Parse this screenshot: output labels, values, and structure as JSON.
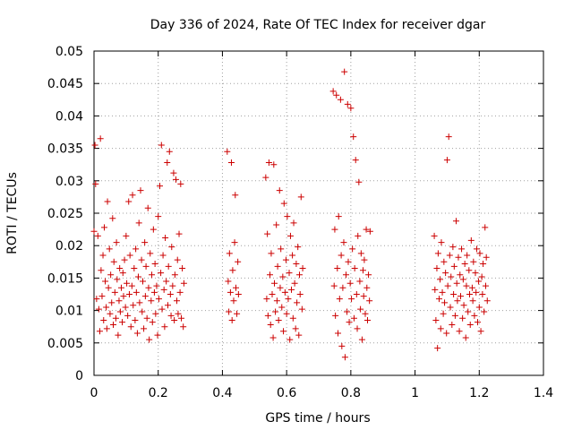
{
  "chart_data": {
    "type": "scatter",
    "title": "Day 336 of 2024, Rate Of TEC Index for receiver dgar",
    "xlabel": "GPS time / hours",
    "ylabel": "ROTI / TECUs",
    "xlim": [
      0,
      1.4
    ],
    "ylim": [
      0,
      0.05
    ],
    "x_ticks": [
      0,
      0.2,
      0.4,
      0.6,
      0.8,
      1,
      1.2,
      1.4
    ],
    "x_tick_labels": [
      "0",
      "0.2",
      "0.4",
      "0.6",
      "0.8",
      "1",
      "1.2",
      "1.4"
    ],
    "y_ticks": [
      0,
      0.005,
      0.01,
      0.015,
      0.02,
      0.025,
      0.03,
      0.035,
      0.04,
      0.045,
      0.05
    ],
    "y_tick_labels": [
      "0",
      "0.005",
      "0.01",
      "0.015",
      "0.02",
      "0.025",
      "0.03",
      "0.035",
      "0.04",
      "0.045",
      "0.05"
    ],
    "grid": true,
    "marker": "+",
    "marker_color": "#cc0000",
    "series": [
      {
        "name": "ROTI",
        "points": [
          [
            0.0,
            0.0222
          ],
          [
            0.003,
            0.0355
          ],
          [
            0.005,
            0.0295
          ],
          [
            0.008,
            0.0118
          ],
          [
            0.012,
            0.0215
          ],
          [
            0.015,
            0.0102
          ],
          [
            0.018,
            0.0068
          ],
          [
            0.02,
            0.0365
          ],
          [
            0.022,
            0.0162
          ],
          [
            0.025,
            0.0122
          ],
          [
            0.028,
            0.0185
          ],
          [
            0.03,
            0.0085
          ],
          [
            0.032,
            0.0228
          ],
          [
            0.035,
            0.0145
          ],
          [
            0.038,
            0.0105
          ],
          [
            0.04,
            0.0072
          ],
          [
            0.042,
            0.0268
          ],
          [
            0.045,
            0.0135
          ],
          [
            0.048,
            0.0195
          ],
          [
            0.05,
            0.0095
          ],
          [
            0.052,
            0.0155
          ],
          [
            0.055,
            0.0112
          ],
          [
            0.058,
            0.0242
          ],
          [
            0.06,
            0.0078
          ],
          [
            0.062,
            0.0175
          ],
          [
            0.065,
            0.0128
          ],
          [
            0.068,
            0.0088
          ],
          [
            0.07,
            0.0205
          ],
          [
            0.072,
            0.0148
          ],
          [
            0.075,
            0.0062
          ],
          [
            0.078,
            0.0115
          ],
          [
            0.08,
            0.0165
          ],
          [
            0.082,
            0.0098
          ],
          [
            0.085,
            0.0135
          ],
          [
            0.088,
            0.0082
          ],
          [
            0.09,
            0.0158
          ],
          [
            0.092,
            0.0122
          ],
          [
            0.095,
            0.0178
          ],
          [
            0.098,
            0.0105
          ],
          [
            0.1,
            0.0215
          ],
          [
            0.102,
            0.0142
          ],
          [
            0.105,
            0.0092
          ],
          [
            0.108,
            0.0268
          ],
          [
            0.11,
            0.0125
          ],
          [
            0.112,
            0.0185
          ],
          [
            0.115,
            0.0075
          ],
          [
            0.118,
            0.0138
          ],
          [
            0.12,
            0.0278
          ],
          [
            0.122,
            0.0108
          ],
          [
            0.125,
            0.0165
          ],
          [
            0.128,
            0.0085
          ],
          [
            0.13,
            0.0195
          ],
          [
            0.132,
            0.0128
          ],
          [
            0.135,
            0.0065
          ],
          [
            0.138,
            0.0152
          ],
          [
            0.14,
            0.0235
          ],
          [
            0.142,
            0.0112
          ],
          [
            0.145,
            0.0285
          ],
          [
            0.148,
            0.0178
          ],
          [
            0.15,
            0.0098
          ],
          [
            0.152,
            0.0145
          ],
          [
            0.155,
            0.0072
          ],
          [
            0.158,
            0.0205
          ],
          [
            0.16,
            0.0122
          ],
          [
            0.162,
            0.0168
          ],
          [
            0.165,
            0.0088
          ],
          [
            0.168,
            0.0258
          ],
          [
            0.17,
            0.0135
          ],
          [
            0.172,
            0.0055
          ],
          [
            0.175,
            0.0188
          ],
          [
            0.178,
            0.0115
          ],
          [
            0.18,
            0.0155
          ],
          [
            0.182,
            0.0082
          ],
          [
            0.185,
            0.0225
          ],
          [
            0.188,
            0.0128
          ],
          [
            0.19,
            0.0172
          ],
          [
            0.192,
            0.0095
          ],
          [
            0.195,
            0.0138
          ],
          [
            0.198,
            0.0062
          ],
          [
            0.2,
            0.0245
          ],
          [
            0.202,
            0.0118
          ],
          [
            0.205,
            0.0292
          ],
          [
            0.208,
            0.0158
          ],
          [
            0.21,
            0.0355
          ],
          [
            0.212,
            0.0102
          ],
          [
            0.215,
            0.0185
          ],
          [
            0.218,
            0.0132
          ],
          [
            0.22,
            0.0075
          ],
          [
            0.222,
            0.0212
          ],
          [
            0.225,
            0.0145
          ],
          [
            0.228,
            0.0328
          ],
          [
            0.23,
            0.0108
          ],
          [
            0.232,
            0.0168
          ],
          [
            0.235,
            0.0345
          ],
          [
            0.238,
            0.0125
          ],
          [
            0.24,
            0.0092
          ],
          [
            0.242,
            0.0198
          ],
          [
            0.245,
            0.0138
          ],
          [
            0.248,
            0.0312
          ],
          [
            0.25,
            0.0085
          ],
          [
            0.252,
            0.0155
          ],
          [
            0.255,
            0.0302
          ],
          [
            0.258,
            0.0115
          ],
          [
            0.26,
            0.0178
          ],
          [
            0.262,
            0.0095
          ],
          [
            0.265,
            0.0218
          ],
          [
            0.268,
            0.0128
          ],
          [
            0.27,
            0.0295
          ],
          [
            0.272,
            0.0088
          ],
          [
            0.275,
            0.0165
          ],
          [
            0.278,
            0.0075
          ],
          [
            0.28,
            0.0142
          ],
          [
            0.415,
            0.0345
          ],
          [
            0.418,
            0.0145
          ],
          [
            0.42,
            0.0098
          ],
          [
            0.422,
            0.0188
          ],
          [
            0.425,
            0.0128
          ],
          [
            0.428,
            0.0328
          ],
          [
            0.43,
            0.0085
          ],
          [
            0.432,
            0.0162
          ],
          [
            0.435,
            0.0115
          ],
          [
            0.438,
            0.0205
          ],
          [
            0.44,
            0.0278
          ],
          [
            0.442,
            0.0135
          ],
          [
            0.445,
            0.0095
          ],
          [
            0.448,
            0.0175
          ],
          [
            0.45,
            0.0125
          ],
          [
            0.535,
            0.0305
          ],
          [
            0.538,
            0.0118
          ],
          [
            0.54,
            0.0218
          ],
          [
            0.542,
            0.0092
          ],
          [
            0.545,
            0.0328
          ],
          [
            0.548,
            0.0155
          ],
          [
            0.55,
            0.0078
          ],
          [
            0.552,
            0.0188
          ],
          [
            0.555,
            0.0125
          ],
          [
            0.558,
            0.0058
          ],
          [
            0.56,
            0.0325
          ],
          [
            0.562,
            0.0142
          ],
          [
            0.565,
            0.0098
          ],
          [
            0.568,
            0.0232
          ],
          [
            0.57,
            0.0115
          ],
          [
            0.572,
            0.0168
          ],
          [
            0.575,
            0.0085
          ],
          [
            0.578,
            0.0285
          ],
          [
            0.58,
            0.0135
          ],
          [
            0.582,
            0.0195
          ],
          [
            0.585,
            0.0105
          ],
          [
            0.588,
            0.0152
          ],
          [
            0.59,
            0.0068
          ],
          [
            0.592,
            0.0265
          ],
          [
            0.595,
            0.0128
          ],
          [
            0.598,
            0.0178
          ],
          [
            0.6,
            0.0095
          ],
          [
            0.602,
            0.0245
          ],
          [
            0.605,
            0.0118
          ],
          [
            0.608,
            0.0158
          ],
          [
            0.61,
            0.0055
          ],
          [
            0.612,
            0.0215
          ],
          [
            0.615,
            0.0132
          ],
          [
            0.618,
            0.0185
          ],
          [
            0.62,
            0.0088
          ],
          [
            0.622,
            0.0235
          ],
          [
            0.625,
            0.0142
          ],
          [
            0.628,
            0.0072
          ],
          [
            0.63,
            0.0172
          ],
          [
            0.632,
            0.0112
          ],
          [
            0.635,
            0.0198
          ],
          [
            0.638,
            0.0062
          ],
          [
            0.64,
            0.0155
          ],
          [
            0.642,
            0.0125
          ],
          [
            0.645,
            0.0275
          ],
          [
            0.648,
            0.0102
          ],
          [
            0.65,
            0.0165
          ],
          [
            0.745,
            0.0438
          ],
          [
            0.748,
            0.0138
          ],
          [
            0.75,
            0.0225
          ],
          [
            0.752,
            0.0092
          ],
          [
            0.755,
            0.0432
          ],
          [
            0.758,
            0.0165
          ],
          [
            0.76,
            0.0065
          ],
          [
            0.762,
            0.0245
          ],
          [
            0.765,
            0.0118
          ],
          [
            0.768,
            0.0425
          ],
          [
            0.77,
            0.0185
          ],
          [
            0.772,
            0.0045
          ],
          [
            0.775,
            0.0135
          ],
          [
            0.778,
            0.0205
          ],
          [
            0.78,
            0.0468
          ],
          [
            0.782,
            0.0028
          ],
          [
            0.785,
            0.0155
          ],
          [
            0.788,
            0.0098
          ],
          [
            0.79,
            0.0418
          ],
          [
            0.792,
            0.0175
          ],
          [
            0.795,
            0.0082
          ],
          [
            0.798,
            0.0142
          ],
          [
            0.8,
            0.0412
          ],
          [
            0.802,
            0.0118
          ],
          [
            0.805,
            0.0195
          ],
          [
            0.808,
            0.0368
          ],
          [
            0.81,
            0.0088
          ],
          [
            0.812,
            0.0165
          ],
          [
            0.815,
            0.0332
          ],
          [
            0.818,
            0.0125
          ],
          [
            0.82,
            0.0072
          ],
          [
            0.822,
            0.0215
          ],
          [
            0.825,
            0.0298
          ],
          [
            0.828,
            0.0145
          ],
          [
            0.83,
            0.0102
          ],
          [
            0.832,
            0.0188
          ],
          [
            0.835,
            0.0055
          ],
          [
            0.838,
            0.0162
          ],
          [
            0.84,
            0.0122
          ],
          [
            0.842,
            0.0178
          ],
          [
            0.845,
            0.0095
          ],
          [
            0.848,
            0.0225
          ],
          [
            0.85,
            0.0135
          ],
          [
            0.852,
            0.0085
          ],
          [
            0.855,
            0.0155
          ],
          [
            0.858,
            0.0115
          ],
          [
            0.86,
            0.0222
          ],
          [
            1.06,
            0.0215
          ],
          [
            1.062,
            0.0132
          ],
          [
            1.065,
            0.0085
          ],
          [
            1.068,
            0.0165
          ],
          [
            1.07,
            0.0042
          ],
          [
            1.072,
            0.0188
          ],
          [
            1.075,
            0.0118
          ],
          [
            1.078,
            0.0148
          ],
          [
            1.08,
            0.0072
          ],
          [
            1.082,
            0.0205
          ],
          [
            1.085,
            0.0128
          ],
          [
            1.088,
            0.0095
          ],
          [
            1.09,
            0.0175
          ],
          [
            1.092,
            0.0112
          ],
          [
            1.095,
            0.0158
          ],
          [
            1.098,
            0.0065
          ],
          [
            1.1,
            0.0332
          ],
          [
            1.102,
            0.0138
          ],
          [
            1.105,
            0.0368
          ],
          [
            1.108,
            0.0185
          ],
          [
            1.11,
            0.0105
          ],
          [
            1.112,
            0.0152
          ],
          [
            1.115,
            0.0078
          ],
          [
            1.118,
            0.0198
          ],
          [
            1.12,
            0.0125
          ],
          [
            1.122,
            0.0168
          ],
          [
            1.125,
            0.0092
          ],
          [
            1.128,
            0.0238
          ],
          [
            1.13,
            0.0142
          ],
          [
            1.132,
            0.0115
          ],
          [
            1.135,
            0.0182
          ],
          [
            1.138,
            0.0068
          ],
          [
            1.14,
            0.0155
          ],
          [
            1.142,
            0.0122
          ],
          [
            1.145,
            0.0195
          ],
          [
            1.148,
            0.0088
          ],
          [
            1.15,
            0.0148
          ],
          [
            1.152,
            0.0108
          ],
          [
            1.155,
            0.0172
          ],
          [
            1.158,
            0.0058
          ],
          [
            1.16,
            0.0138
          ],
          [
            1.162,
            0.0185
          ],
          [
            1.165,
            0.0098
          ],
          [
            1.168,
            0.0162
          ],
          [
            1.17,
            0.0125
          ],
          [
            1.172,
            0.0078
          ],
          [
            1.175,
            0.0208
          ],
          [
            1.178,
            0.0135
          ],
          [
            1.18,
            0.0115
          ],
          [
            1.182,
            0.0175
          ],
          [
            1.185,
            0.0092
          ],
          [
            1.188,
            0.0158
          ],
          [
            1.19,
            0.0128
          ],
          [
            1.192,
            0.0195
          ],
          [
            1.195,
            0.0082
          ],
          [
            1.198,
            0.0145
          ],
          [
            1.2,
            0.0105
          ],
          [
            1.202,
            0.0188
          ],
          [
            1.205,
            0.0068
          ],
          [
            1.208,
            0.0152
          ],
          [
            1.21,
            0.0125
          ],
          [
            1.212,
            0.0172
          ],
          [
            1.215,
            0.0098
          ],
          [
            1.218,
            0.0228
          ],
          [
            1.22,
            0.0138
          ],
          [
            1.222,
            0.0182
          ],
          [
            1.225,
            0.0115
          ]
        ]
      }
    ]
  }
}
